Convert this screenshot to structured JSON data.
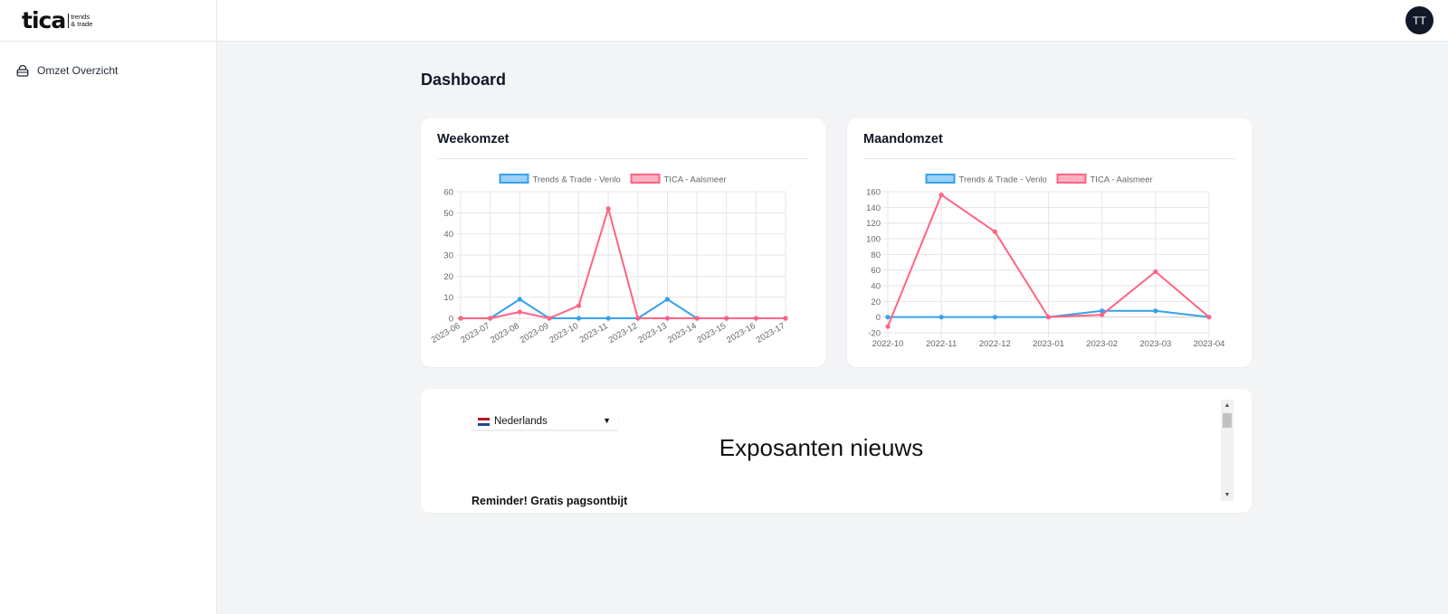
{
  "logo": {
    "word": "tica",
    "sub_line1": "trends",
    "sub_line2": "& trade"
  },
  "sidebar": {
    "items": [
      {
        "label": "Omzet Overzicht",
        "icon": "bag-icon"
      }
    ]
  },
  "header": {
    "avatar_initials": "TT"
  },
  "page": {
    "title": "Dashboard"
  },
  "colors": {
    "blue": "#36a2eb",
    "pink": "#ff6384",
    "blue_fill": "#9ad0f5",
    "pink_fill": "#ffb1c1"
  },
  "chart_data": [
    {
      "type": "line",
      "title": "Weekomzet",
      "categories": [
        "2023-06",
        "2023-07",
        "2023-08",
        "2023-09",
        "2023-10",
        "2023-11",
        "2023-12",
        "2023-13",
        "2023-14",
        "2023-15",
        "2023-16",
        "2023-17"
      ],
      "series": [
        {
          "name": "Trends & Trade - Venlo",
          "color": "#36a2eb",
          "values": [
            0,
            0,
            9,
            0,
            0,
            0,
            0,
            9,
            0,
            0,
            0,
            0
          ]
        },
        {
          "name": "TICA - Aalsmeer",
          "color": "#ff6384",
          "values": [
            0,
            0,
            3,
            0,
            6,
            52,
            0,
            0,
            0,
            0,
            0,
            0
          ]
        }
      ],
      "ylim": [
        0,
        60
      ],
      "yticks": [
        0,
        10,
        20,
        30,
        40,
        50,
        60
      ],
      "legend": "top",
      "grid": true
    },
    {
      "type": "line",
      "title": "Maandomzet",
      "categories": [
        "2022-10",
        "2022-11",
        "2022-12",
        "2023-01",
        "2023-02",
        "2023-03",
        "2023-04"
      ],
      "series": [
        {
          "name": "Trends & Trade - Venlo",
          "color": "#36a2eb",
          "values": [
            0,
            0,
            0,
            0,
            8,
            8,
            0
          ]
        },
        {
          "name": "TICA - Aalsmeer",
          "color": "#ff6384",
          "values": [
            -12,
            156,
            109,
            0,
            3,
            58,
            0
          ]
        }
      ],
      "ylim": [
        -20,
        160
      ],
      "yticks": [
        -20,
        0,
        20,
        40,
        60,
        80,
        100,
        120,
        140,
        160
      ],
      "legend": "top",
      "grid": true
    }
  ],
  "news": {
    "language": "Nederlands",
    "heading": "Exposanten nieuws",
    "article_title": "Reminder! Gratis pagsontbijt"
  }
}
